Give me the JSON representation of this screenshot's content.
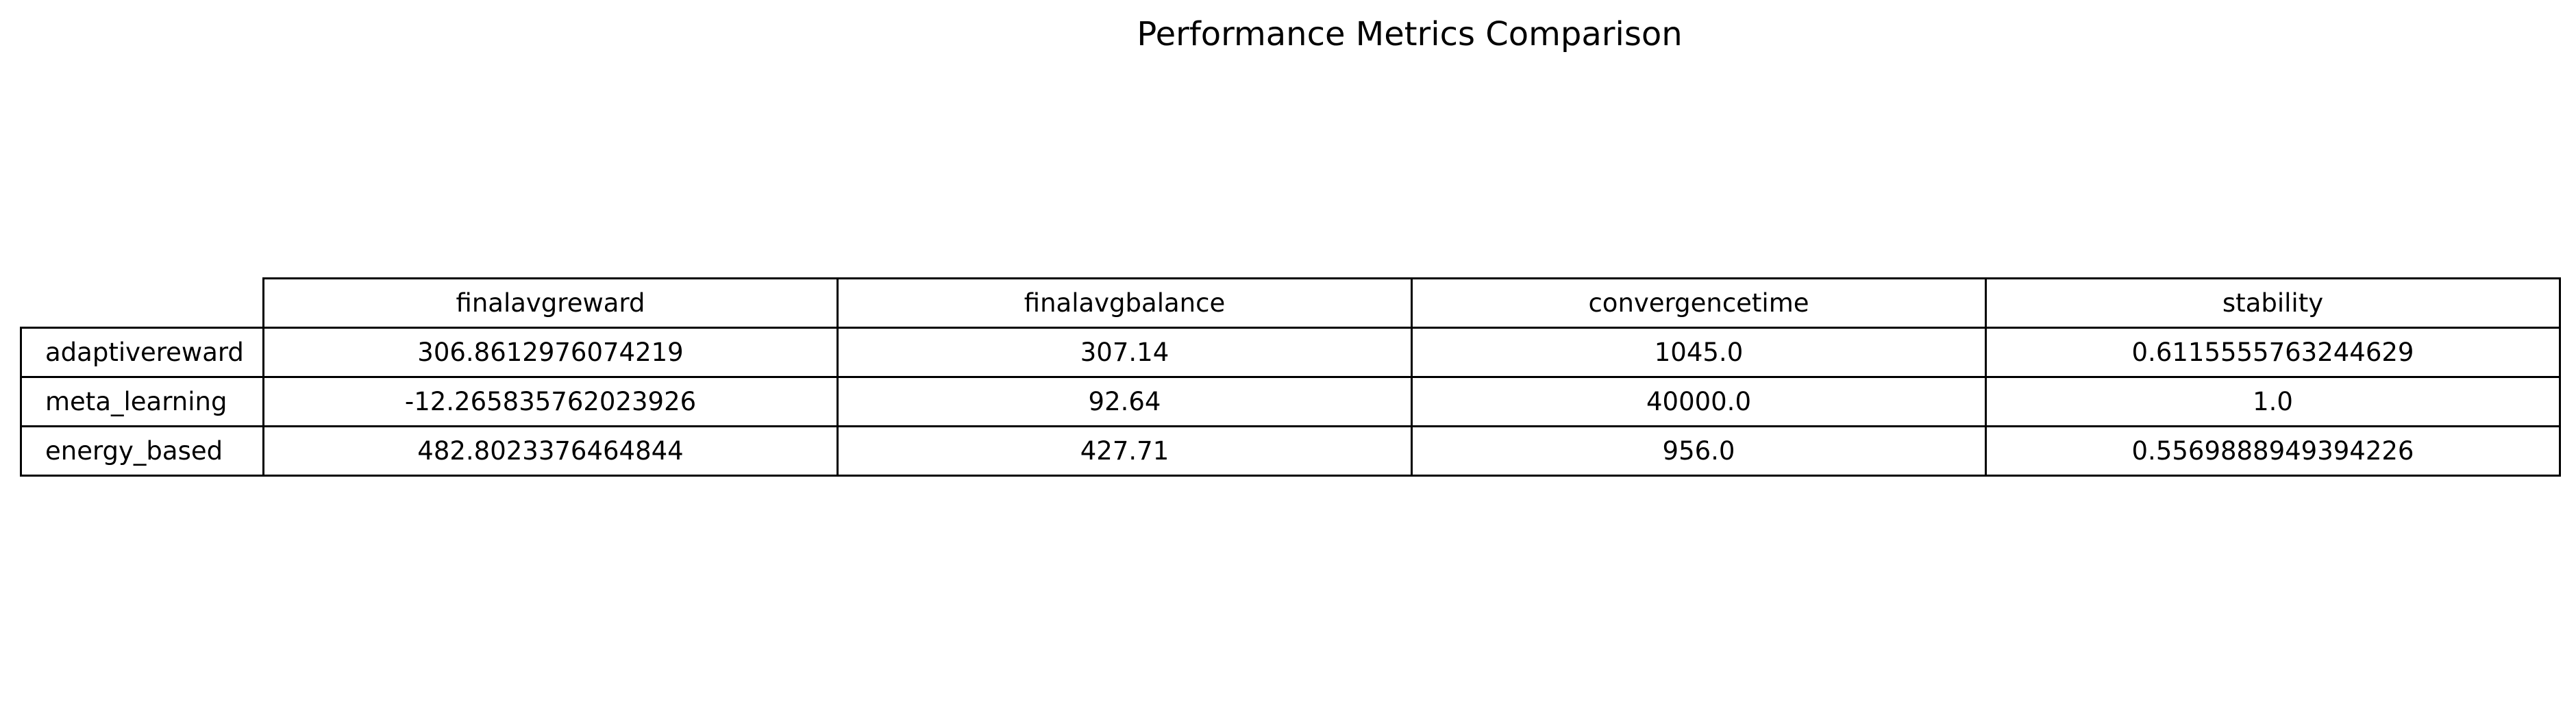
{
  "chart_data": {
    "type": "table",
    "title": "Performance Metrics Comparison",
    "columns": [
      "finalavgreward",
      "finalavgbalance",
      "convergencetime",
      "stability"
    ],
    "rows": [
      {
        "label": "adaptivereward",
        "values": [
          "306.8612976074219",
          "307.14",
          "1045.0",
          "0.6115555763244629"
        ]
      },
      {
        "label": "meta_learning",
        "values": [
          "-12.265835762023926",
          "92.64",
          "40000.0",
          "1.0"
        ]
      },
      {
        "label": "energy_based",
        "values": [
          "482.8023376464844",
          "427.71",
          "956.0",
          "0.5569888949394226"
        ]
      }
    ]
  }
}
